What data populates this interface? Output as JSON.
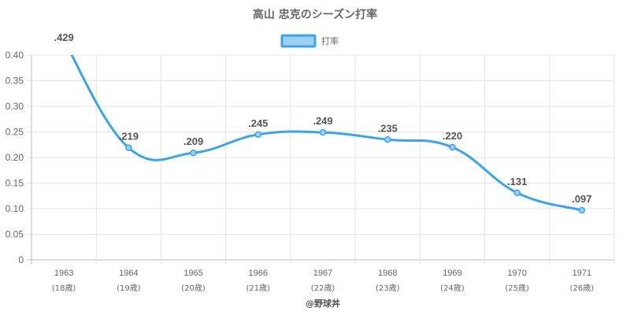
{
  "chart_data": {
    "type": "line",
    "title": "高山 忠克のシーズン打率",
    "legend": {
      "label": "打率",
      "position": "top"
    },
    "categories": [
      "1963",
      "1964",
      "1965",
      "1966",
      "1967",
      "1968",
      "1969",
      "1970",
      "1971"
    ],
    "category_sublabels": [
      "(18歳)",
      "(19歳)",
      "(20歳)",
      "(21歳)",
      "(22歳)",
      "(23歳)",
      "(24歳)",
      "(25歳)",
      "(26歳)"
    ],
    "series": [
      {
        "name": "打率",
        "values": [
          0.429,
          0.219,
          0.209,
          0.245,
          0.249,
          0.235,
          0.22,
          0.131,
          0.097
        ],
        "labels": [
          ".429",
          ".219",
          ".209",
          ".245",
          ".249",
          ".235",
          ".220",
          ".131",
          ".097"
        ]
      }
    ],
    "ylim": [
      0,
      0.4
    ],
    "yticks": [
      "0",
      "0.05",
      "0.10",
      "0.15",
      "0.20",
      "0.25",
      "0.30",
      "0.35",
      "0.40"
    ],
    "grid": true,
    "xlabel": "",
    "ylabel": ""
  },
  "colors": {
    "line": "#3ea3e6",
    "fill": "#9ccff2",
    "grid": "#e5e5e5",
    "text": "#666666"
  },
  "credit": "@野球丼"
}
